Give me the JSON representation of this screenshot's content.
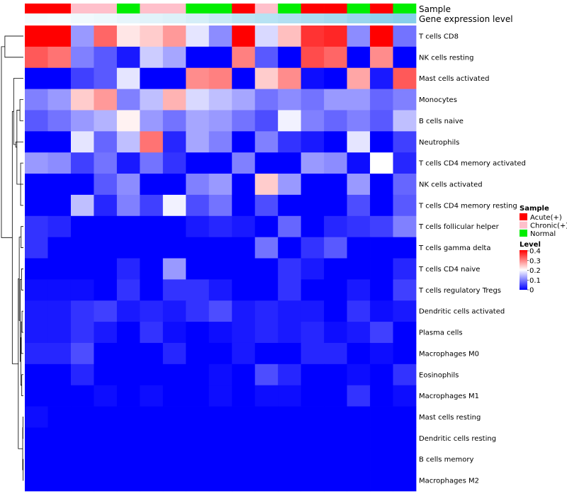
{
  "chart_data": {
    "type": "heatmap",
    "annotation_labels": [
      "Sample",
      "Gene expression level"
    ],
    "sample_groups": [
      "Acute(+)",
      "Acute(+)",
      "Chronic(+)",
      "Chronic(+)",
      "Normal",
      "Chronic(+)",
      "Chronic(+)",
      "Normal",
      "Normal",
      "Acute(+)",
      "Chronic(+)",
      "Normal",
      "Acute(+)",
      "Acute(+)",
      "Normal",
      "Acute(+)",
      "Normal"
    ],
    "expression_level": [
      0.08,
      0.07,
      0.12,
      0.15,
      0.2,
      0.25,
      0.28,
      0.35,
      0.45,
      0.55,
      0.6,
      0.65,
      0.7,
      0.75,
      0.85,
      0.95,
      1.0
    ],
    "rows": [
      "T cells CD8",
      "NK cells resting",
      "Mast cells activated",
      "Monocytes",
      "B cells naive",
      "Neutrophils",
      "T cells CD4 memory activated",
      "NK cells activated",
      "T cells CD4 memory resting",
      "T cells follicular helper",
      "T cells gamma delta",
      "T cells CD4 naive",
      "T cells regulatory  Tregs",
      "Dendritic cells activated",
      "Plasma cells",
      "Macrophages M0",
      "Eosinophils",
      "Macrophages M1",
      "Mast cells resting",
      "Dendritic cells resting",
      "B cells memory",
      "Macrophages M2"
    ],
    "values": [
      [
        0.4,
        0.4,
        0.12,
        0.32,
        0.22,
        0.24,
        0.28,
        0.18,
        0.11,
        0.4,
        0.17,
        0.25,
        0.36,
        0.37,
        0.11,
        0.4,
        0.09
      ],
      [
        0.33,
        0.31,
        0.1,
        0.07,
        0.02,
        0.16,
        0.13,
        0,
        0,
        0.3,
        0.07,
        0,
        0.34,
        0.32,
        0,
        0.29,
        0
      ],
      [
        0,
        0,
        0.05,
        0.07,
        0.18,
        0,
        0,
        0.29,
        0.3,
        0,
        0.24,
        0.29,
        0.01,
        0,
        0.27,
        0.02,
        0.33
      ],
      [
        0.1,
        0.12,
        0.24,
        0.28,
        0.1,
        0.15,
        0.26,
        0.17,
        0.15,
        0.13,
        0.09,
        0.11,
        0.09,
        0.12,
        0.12,
        0.08,
        0.1
      ],
      [
        0.07,
        0.09,
        0.12,
        0.14,
        0.21,
        0.12,
        0.09,
        0.13,
        0.12,
        0.09,
        0.06,
        0.19,
        0.1,
        0.08,
        0.1,
        0.07,
        0.15
      ],
      [
        0,
        0,
        0.18,
        0.08,
        0.15,
        0.31,
        0.03,
        0.13,
        0.1,
        0,
        0.1,
        0.04,
        0.02,
        0,
        0.18,
        0,
        0.05
      ],
      [
        0.12,
        0.11,
        0.05,
        0.09,
        0.02,
        0.09,
        0.04,
        0,
        0,
        0.1,
        0,
        0,
        0.12,
        0.11,
        0.01,
        0.2,
        0.03
      ],
      [
        0,
        0,
        0,
        0.07,
        0.11,
        0,
        0,
        0.1,
        0.12,
        0,
        0.24,
        0.12,
        0,
        0,
        0.12,
        0,
        0.08
      ],
      [
        0,
        0,
        0.15,
        0.03,
        0.1,
        0.05,
        0.19,
        0.06,
        0.09,
        0,
        0.06,
        0,
        0,
        0,
        0.06,
        0,
        0.07
      ],
      [
        0.04,
        0.03,
        0,
        0,
        0,
        0,
        0,
        0.02,
        0.03,
        0.02,
        0,
        0.08,
        0,
        0.03,
        0.04,
        0.05,
        0.1
      ],
      [
        0.04,
        0,
        0,
        0,
        0,
        0,
        0,
        0,
        0,
        0,
        0.09,
        0,
        0.04,
        0.07,
        0,
        0,
        0
      ],
      [
        0,
        0,
        0,
        0,
        0.03,
        0,
        0.12,
        0,
        0,
        0,
        0,
        0.04,
        0.02,
        0,
        0,
        0,
        0.03
      ],
      [
        0.01,
        0.01,
        0.01,
        0,
        0.04,
        0,
        0.04,
        0.04,
        0.02,
        0,
        0,
        0.04,
        0,
        0,
        0.02,
        0,
        0.05
      ],
      [
        0.02,
        0.02,
        0.04,
        0.05,
        0.02,
        0.03,
        0.02,
        0.04,
        0.06,
        0.02,
        0.03,
        0.02,
        0.02,
        0,
        0.04,
        0.01,
        0.02
      ],
      [
        0.02,
        0.02,
        0.04,
        0.02,
        0,
        0.04,
        0.01,
        0,
        0.01,
        0.02,
        0.03,
        0.02,
        0.03,
        0.01,
        0.02,
        0.05,
        0
      ],
      [
        0.03,
        0.03,
        0.06,
        0,
        0,
        0,
        0.03,
        0,
        0,
        0.02,
        0,
        0,
        0.03,
        0.03,
        0,
        0.01,
        0
      ],
      [
        0,
        0,
        0.03,
        0,
        0,
        0,
        0,
        0,
        0.01,
        0,
        0.06,
        0.03,
        0,
        0,
        0.01,
        0,
        0.04
      ],
      [
        0,
        0,
        0,
        0.01,
        0,
        0.01,
        0,
        0,
        0.01,
        0,
        0.01,
        0.01,
        0,
        0,
        0.04,
        0,
        0.01
      ],
      [
        0.01,
        0,
        0,
        0,
        0,
        0,
        0,
        0,
        0,
        0,
        0,
        0,
        0,
        0,
        0,
        0,
        0
      ],
      [
        0,
        0,
        0,
        0,
        0,
        0,
        0,
        0,
        0,
        0,
        0,
        0,
        0,
        0,
        0,
        0,
        0
      ],
      [
        0,
        0,
        0,
        0,
        0,
        0,
        0,
        0,
        0,
        0,
        0,
        0,
        0,
        0,
        0,
        0,
        0
      ],
      [
        0,
        0,
        0,
        0,
        0,
        0,
        0,
        0,
        0,
        0,
        0,
        0,
        0,
        0,
        0,
        0,
        0
      ]
    ],
    "scale": {
      "min": 0,
      "max": 0.4,
      "low_color": "#0000ff",
      "mid_color": "#ffffff",
      "high_color": "#ff0000",
      "mid_value": 0.2
    },
    "expression_colors": {
      "low": "#ffffff",
      "high": "#87ceeb"
    },
    "legend": {
      "sample_title": "Sample",
      "sample_entries": [
        {
          "label": "Acute(+)",
          "color": "#ff0000"
        },
        {
          "label": "Chronic(+)",
          "color": "#ffc0cb"
        },
        {
          "label": "Normal",
          "color": "#00ee00"
        }
      ],
      "level_title": "Level",
      "level_ticks": [
        "0.4",
        "0.3",
        "0.2",
        "0.1",
        "0"
      ]
    }
  }
}
